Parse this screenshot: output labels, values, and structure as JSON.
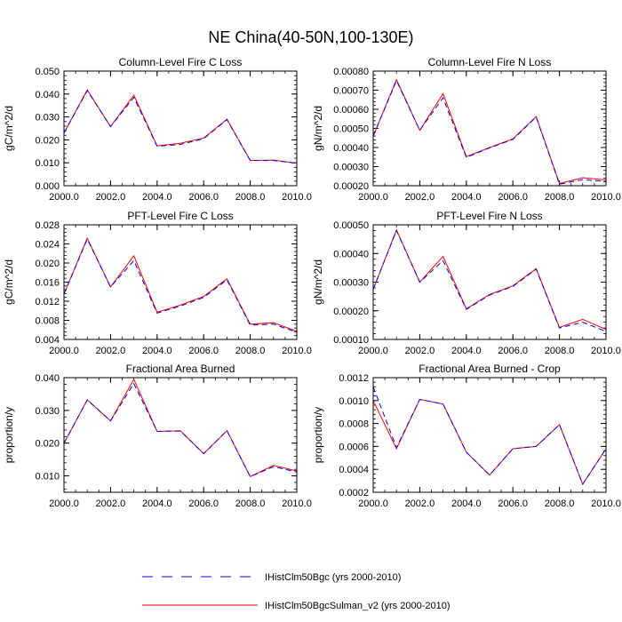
{
  "figure": {
    "title": "NE China(40-50N,100-130E)"
  },
  "legend": {
    "items": [
      {
        "label": "IHistClm50Bgc (yrs 2000-2010)",
        "color": "#0000ff",
        "dash": "dashed"
      },
      {
        "label": "IHistClm50BgcSulman_v2 (yrs 2000-2010)",
        "color": "#ff0000",
        "dash": "solid"
      }
    ]
  },
  "chart_data": [
    {
      "type": "line",
      "title": "Column-Level Fire C Loss",
      "ylabel": "gC/m^2/d",
      "xlim": [
        2000,
        2010
      ],
      "ylim": [
        0.0,
        0.05
      ],
      "x_ticks": [
        2000,
        2002,
        2004,
        2006,
        2008,
        2010
      ],
      "x_tick_labels": [
        "2000.0",
        "2002.0",
        "2004.0",
        "2006.0",
        "2008.0",
        "2010.0"
      ],
      "y_ticks": [
        0.0,
        0.01,
        0.02,
        0.03,
        0.04,
        0.05
      ],
      "y_tick_labels": [
        "0.000",
        "0.010",
        "0.020",
        "0.030",
        "0.040",
        "0.050"
      ],
      "x": [
        2000,
        2001,
        2002,
        2003,
        2004,
        2005,
        2006,
        2007,
        2008,
        2009,
        2010
      ],
      "series": [
        {
          "name": "IHistClm50Bgc (yrs 2000-2010)",
          "values": [
            0.023,
            0.0415,
            0.0258,
            0.0385,
            0.0172,
            0.018,
            0.0205,
            0.0288,
            0.011,
            0.011,
            0.0098
          ]
        },
        {
          "name": "IHistClm50BgcSulman_v2 (yrs 2000-2010)",
          "values": [
            0.023,
            0.0418,
            0.0258,
            0.0395,
            0.0174,
            0.0185,
            0.0208,
            0.029,
            0.011,
            0.0112,
            0.0098
          ]
        }
      ]
    },
    {
      "type": "line",
      "title": "Column-Level Fire N Loss",
      "ylabel": "gN/m^2/d",
      "xlim": [
        2000,
        2010
      ],
      "ylim": [
        0.0002,
        0.0008
      ],
      "x_ticks": [
        2000,
        2002,
        2004,
        2006,
        2008,
        2010
      ],
      "x_tick_labels": [
        "2000.0",
        "2002.0",
        "2004.0",
        "2006.0",
        "2008.0",
        "2010.0"
      ],
      "y_ticks": [
        0.0002,
        0.0003,
        0.0004,
        0.0005,
        0.0006,
        0.0007,
        0.0008
      ],
      "y_tick_labels": [
        "0.00020",
        "0.00030",
        "0.00040",
        "0.00050",
        "0.00060",
        "0.00070",
        "0.00080"
      ],
      "x": [
        2000,
        2001,
        2002,
        2003,
        2004,
        2005,
        2006,
        2007,
        2008,
        2009,
        2010
      ],
      "series": [
        {
          "name": "IHistClm50Bgc (yrs 2000-2010)",
          "values": [
            0.00046,
            0.00075,
            0.00049,
            0.00066,
            0.000348,
            0.000398,
            0.000442,
            0.00056,
            0.000208,
            0.000232,
            0.000222
          ]
        },
        {
          "name": "IHistClm50BgcSulman_v2 (yrs 2000-2010)",
          "values": [
            0.00046,
            0.000755,
            0.00049,
            0.000682,
            0.000352,
            0.0004,
            0.000445,
            0.000562,
            0.000212,
            0.000242,
            0.00023
          ]
        }
      ]
    },
    {
      "type": "line",
      "title": "PFT-Level Fire C Loss",
      "ylabel": "gC/m^2/d",
      "xlim": [
        2000,
        2010
      ],
      "ylim": [
        0.004,
        0.028
      ],
      "x_ticks": [
        2000,
        2002,
        2004,
        2006,
        2008,
        2010
      ],
      "x_tick_labels": [
        "2000.0",
        "2002.0",
        "2004.0",
        "2006.0",
        "2008.0",
        "2010.0"
      ],
      "y_ticks": [
        0.004,
        0.008,
        0.012,
        0.016,
        0.02,
        0.024,
        0.028
      ],
      "y_tick_labels": [
        "0.004",
        "0.008",
        "0.012",
        "0.016",
        "0.020",
        "0.024",
        "0.028"
      ],
      "x": [
        2000,
        2001,
        2002,
        2003,
        2004,
        2005,
        2006,
        2007,
        2008,
        2009,
        2010
      ],
      "series": [
        {
          "name": "IHistClm50Bgc (yrs 2000-2010)",
          "values": [
            0.0135,
            0.025,
            0.015,
            0.0205,
            0.0095,
            0.011,
            0.0128,
            0.0165,
            0.007,
            0.0072,
            0.0055
          ]
        },
        {
          "name": "IHistClm50BgcSulman_v2 (yrs 2000-2010)",
          "values": [
            0.0135,
            0.0252,
            0.015,
            0.0215,
            0.0097,
            0.0112,
            0.013,
            0.0167,
            0.0072,
            0.0075,
            0.0057
          ]
        }
      ]
    },
    {
      "type": "line",
      "title": "PFT-Level Fire N Loss",
      "ylabel": "gN/m^2/d",
      "xlim": [
        2000,
        2010
      ],
      "ylim": [
        0.0001,
        0.0005
      ],
      "x_ticks": [
        2000,
        2002,
        2004,
        2006,
        2008,
        2010
      ],
      "x_tick_labels": [
        "2000.0",
        "2002.0",
        "2004.0",
        "2006.0",
        "2008.0",
        "2010.0"
      ],
      "y_ticks": [
        0.0001,
        0.0002,
        0.0003,
        0.0004,
        0.0005
      ],
      "y_tick_labels": [
        "0.00010",
        "0.00020",
        "0.00030",
        "0.00040",
        "0.00050"
      ],
      "x": [
        2000,
        2001,
        2002,
        2003,
        2004,
        2005,
        2006,
        2007,
        2008,
        2009,
        2010
      ],
      "series": [
        {
          "name": "IHistClm50Bgc (yrs 2000-2010)",
          "values": [
            0.000275,
            0.00048,
            0.0003,
            0.000375,
            0.000205,
            0.000255,
            0.000285,
            0.000345,
            0.00014,
            0.00016,
            0.000128
          ]
        },
        {
          "name": "IHistClm50BgcSulman_v2 (yrs 2000-2010)",
          "values": [
            0.000275,
            0.000482,
            0.0003,
            0.00039,
            0.000207,
            0.000257,
            0.000287,
            0.000347,
            0.000142,
            0.00017,
            0.000135
          ]
        }
      ]
    },
    {
      "type": "line",
      "title": "Fractional Area Burned",
      "ylabel": "proportion/y",
      "xlim": [
        2000,
        2010
      ],
      "ylim": [
        0.005,
        0.04
      ],
      "x_ticks": [
        2000,
        2002,
        2004,
        2006,
        2008,
        2010
      ],
      "x_tick_labels": [
        "2000.0",
        "2002.0",
        "2004.0",
        "2006.0",
        "2008.0",
        "2010.0"
      ],
      "y_ticks": [
        0.01,
        0.02,
        0.03,
        0.04
      ],
      "y_tick_labels": [
        "0.010",
        "0.020",
        "0.030",
        "0.040"
      ],
      "x": [
        2000,
        2001,
        2002,
        2003,
        2004,
        2005,
        2006,
        2007,
        2008,
        2009,
        2010
      ],
      "series": [
        {
          "name": "IHistClm50Bgc (yrs 2000-2010)",
          "values": [
            0.02,
            0.0332,
            0.0268,
            0.0382,
            0.0236,
            0.0237,
            0.0168,
            0.0238,
            0.0098,
            0.0128,
            0.0112
          ]
        },
        {
          "name": "IHistClm50BgcSulman_v2 (yrs 2000-2010)",
          "values": [
            0.02,
            0.0332,
            0.0268,
            0.0395,
            0.0236,
            0.0238,
            0.0168,
            0.0238,
            0.0098,
            0.0132,
            0.0115
          ]
        }
      ]
    },
    {
      "type": "line",
      "title": "Fractional Area Burned - Crop",
      "ylabel": "proportion/y",
      "xlim": [
        2000,
        2010
      ],
      "ylim": [
        0.0002,
        0.0012
      ],
      "x_ticks": [
        2000,
        2002,
        2004,
        2006,
        2008,
        2010
      ],
      "x_tick_labels": [
        "2000.0",
        "2002.0",
        "2004.0",
        "2006.0",
        "2008.0",
        "2010.0"
      ],
      "y_ticks": [
        0.0002,
        0.0004,
        0.0006,
        0.0008,
        0.001,
        0.0012
      ],
      "y_tick_labels": [
        "0.0002",
        "0.0004",
        "0.0006",
        "0.0008",
        "0.0010",
        "0.0012"
      ],
      "x": [
        2000,
        2001,
        2002,
        2003,
        2004,
        2005,
        2006,
        2007,
        2008,
        2009,
        2010
      ],
      "series": [
        {
          "name": "IHistClm50Bgc (yrs 2000-2010)",
          "values": [
            0.00112,
            0.00059,
            0.00101,
            0.00097,
            0.00055,
            0.00035,
            0.00058,
            0.0006,
            0.00079,
            0.00027,
            0.00058
          ]
        },
        {
          "name": "IHistClm50BgcSulman_v2 (yrs 2000-2010)",
          "values": [
            0.001,
            0.00058,
            0.00101,
            0.00097,
            0.00055,
            0.00035,
            0.00058,
            0.0006,
            0.00079,
            0.00027,
            0.00058
          ]
        }
      ]
    }
  ]
}
